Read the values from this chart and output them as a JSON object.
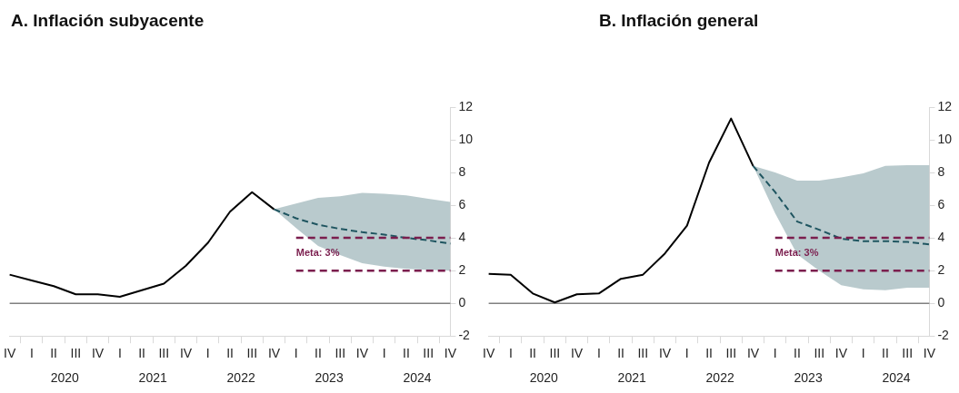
{
  "chart_data": [
    {
      "type": "line",
      "title": "A. Inflación subyacente",
      "categories": [
        "IV",
        "I",
        "II",
        "III",
        "IV",
        "I",
        "II",
        "III",
        "IV",
        "I",
        "II",
        "III",
        "IV",
        "I",
        "II",
        "III",
        "IV",
        "I",
        "II",
        "III",
        "IV"
      ],
      "series": [
        {
          "type": "line",
          "color": "#1f5560",
          "line_style": "dashed",
          "values": [
            null,
            null,
            null,
            null,
            null,
            null,
            null,
            null,
            null,
            null,
            null,
            null,
            5.75,
            5.2,
            4.8,
            4.55,
            4.35,
            4.2,
            4.0,
            3.85,
            3.65
          ],
          "lower": [
            null,
            null,
            null,
            null,
            null,
            null,
            null,
            null,
            null,
            null,
            null,
            null,
            5.75,
            4.6,
            3.5,
            2.95,
            2.45,
            2.25,
            2.1,
            2.05,
            2.0
          ],
          "upper": [
            null,
            null,
            null,
            null,
            null,
            null,
            null,
            null,
            null,
            null,
            null,
            null,
            5.75,
            6.1,
            6.45,
            6.55,
            6.75,
            6.7,
            6.6,
            6.4,
            6.2
          ]
        },
        {
          "type": "line",
          "color": "#000000",
          "line_style": "solid",
          "values": [
            1.75,
            1.4,
            1.05,
            0.55,
            0.55,
            0.4,
            0.8,
            1.2,
            2.3,
            3.7,
            5.6,
            6.8,
            5.75,
            null,
            null,
            null,
            null,
            null,
            null,
            null,
            null
          ]
        }
      ],
      "ylim": [
        -2,
        12
      ],
      "yticks": [
        -2,
        0,
        2,
        4,
        6,
        8,
        10,
        12
      ],
      "grid": false,
      "legend": false,
      "marker": "none",
      "ref_lines": [
        {
          "axis": "y",
          "value": 0,
          "color": "#808080",
          "line_style": "solid"
        },
        {
          "axis": "y",
          "value": 2,
          "color": "#7b1e4e",
          "line_style": "dashed"
        },
        {
          "axis": "y",
          "value": 4,
          "color": "#7b1e4e",
          "line_style": "dashed"
        }
      ],
      "annotations": [
        "2020",
        "2021",
        "2022",
        "2023",
        "2024",
        "Meta: 3%"
      ]
    },
    {
      "type": "line",
      "title": "B. Inflación general",
      "categories": [
        "IV",
        "I",
        "II",
        "III",
        "IV",
        "I",
        "II",
        "III",
        "IV",
        "I",
        "II",
        "III",
        "IV",
        "I",
        "II",
        "III",
        "IV",
        "I",
        "II",
        "III",
        "IV"
      ],
      "series": [
        {
          "type": "line",
          "color": "#1f5560",
          "line_style": "dashed",
          "values": [
            null,
            null,
            null,
            null,
            null,
            null,
            null,
            null,
            null,
            null,
            null,
            null,
            8.4,
            6.8,
            5.0,
            4.5,
            3.95,
            3.8,
            3.8,
            3.75,
            3.6
          ],
          "lower": [
            null,
            null,
            null,
            null,
            null,
            null,
            null,
            null,
            null,
            null,
            null,
            null,
            8.4,
            5.5,
            3.0,
            2.0,
            1.1,
            0.85,
            0.8,
            0.95,
            0.95
          ],
          "upper": [
            null,
            null,
            null,
            null,
            null,
            null,
            null,
            null,
            null,
            null,
            null,
            null,
            8.4,
            8.0,
            7.5,
            7.5,
            7.7,
            7.95,
            8.4,
            8.45,
            8.45
          ]
        },
        {
          "type": "line",
          "color": "#000000",
          "line_style": "solid",
          "values": [
            1.8,
            1.75,
            0.6,
            0.05,
            0.55,
            0.6,
            1.5,
            1.75,
            3.05,
            4.75,
            8.6,
            11.3,
            8.4,
            null,
            null,
            null,
            null,
            null,
            null,
            null,
            null
          ]
        }
      ],
      "ylim": [
        -2,
        12
      ],
      "yticks": [
        -2,
        0,
        2,
        4,
        6,
        8,
        10,
        12
      ],
      "grid": false,
      "legend": false,
      "marker": "none",
      "ref_lines": [
        {
          "axis": "y",
          "value": 0,
          "color": "#808080",
          "line_style": "solid"
        },
        {
          "axis": "y",
          "value": 2,
          "color": "#7b1e4e",
          "line_style": "dashed"
        },
        {
          "axis": "y",
          "value": 4,
          "color": "#7b1e4e",
          "line_style": "dashed"
        }
      ],
      "annotations": [
        "2020",
        "2021",
        "2022",
        "2023",
        "2024",
        "Meta: 3%"
      ]
    }
  ]
}
